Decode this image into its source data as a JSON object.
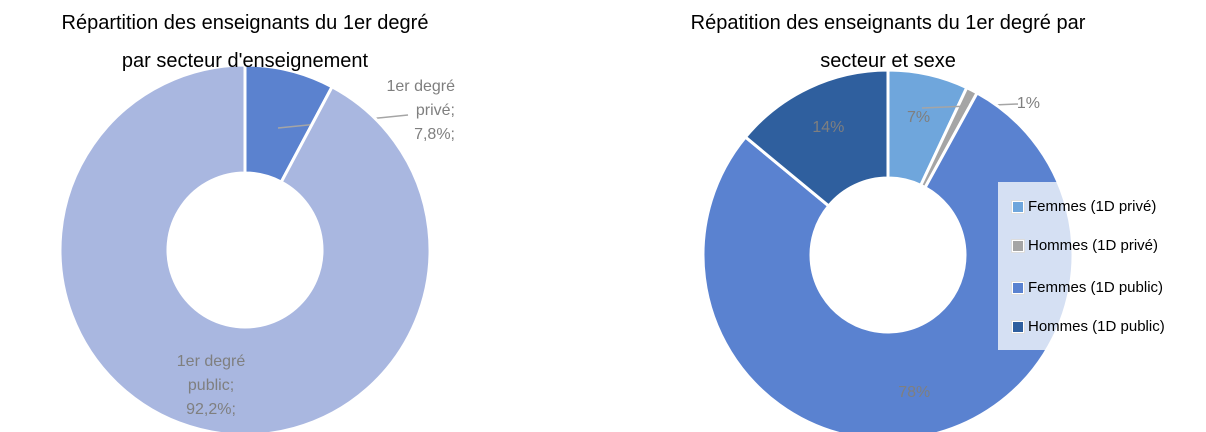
{
  "chart_data": [
    {
      "type": "donut",
      "title": "Répartition des enseignants du 1er degré par secteur d'enseignement",
      "categories": [
        "1er degré privé",
        "1er degré public"
      ],
      "values": [
        7.8,
        92.2
      ],
      "value_labels": [
        "7,8%;",
        "92,2%;"
      ],
      "label_separator": ";",
      "colors": [
        "#5b82cf",
        "#a9b7e0"
      ]
    },
    {
      "type": "donut",
      "title": "Répatition des enseignants du 1er degré par secteur et sexe",
      "series": [
        {
          "name": "Femmes (1D privé)",
          "color": "#6fa6dc",
          "values": [
            7
          ]
        },
        {
          "name": "Hommes (1D privé)",
          "color": "#a5a5a5",
          "values": [
            1
          ]
        },
        {
          "name": "Femmes (1D public)",
          "color": "#5a82d0",
          "values": [
            78
          ]
        },
        {
          "name": "Hommes (1D public)",
          "color": "#2f5f9e",
          "values": [
            14
          ]
        }
      ],
      "value_labels": [
        "7%",
        "1%",
        "78%",
        "14%"
      ],
      "legend": "right"
    }
  ]
}
